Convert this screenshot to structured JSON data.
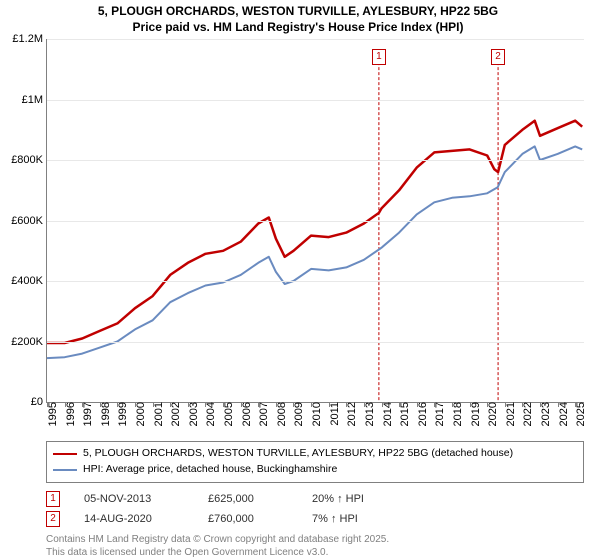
{
  "title_line1": "5, PLOUGH ORCHARDS, WESTON TURVILLE, AYLESBURY, HP22 5BG",
  "title_line2": "Price paid vs. HM Land Registry's House Price Index (HPI)",
  "chart": {
    "type": "line",
    "background_color": "#ffffff",
    "grid_color": "#e8e8e8",
    "axis_color": "#808080",
    "y": {
      "min": 0,
      "max": 1200000,
      "ticks": [
        {
          "v": 0,
          "label": "£0"
        },
        {
          "v": 200000,
          "label": "£200K"
        },
        {
          "v": 400000,
          "label": "£400K"
        },
        {
          "v": 600000,
          "label": "£600K"
        },
        {
          "v": 800000,
          "label": "£800K"
        },
        {
          "v": 1000000,
          "label": "£1M"
        },
        {
          "v": 1200000,
          "label": "£1.2M"
        }
      ],
      "label_fontsize": 11
    },
    "x": {
      "min": 1995,
      "max": 2025.5,
      "ticks": [
        1995,
        1996,
        1997,
        1998,
        1999,
        2000,
        2001,
        2002,
        2003,
        2004,
        2005,
        2006,
        2007,
        2008,
        2009,
        2010,
        2011,
        2012,
        2013,
        2014,
        2015,
        2016,
        2017,
        2018,
        2019,
        2020,
        2021,
        2022,
        2023,
        2024,
        2025
      ],
      "label_fontsize": 11
    },
    "series": [
      {
        "name": "property",
        "label": "5, PLOUGH ORCHARDS, WESTON TURVILLE, AYLESBURY, HP22 5BG (detached house)",
        "color": "#c00000",
        "line_width": 2.5,
        "points": [
          [
            1995,
            195000
          ],
          [
            1996,
            195000
          ],
          [
            1997,
            210000
          ],
          [
            1998,
            235000
          ],
          [
            1999,
            260000
          ],
          [
            2000,
            310000
          ],
          [
            2001,
            350000
          ],
          [
            2002,
            420000
          ],
          [
            2003,
            460000
          ],
          [
            2004,
            490000
          ],
          [
            2005,
            500000
          ],
          [
            2006,
            530000
          ],
          [
            2007,
            590000
          ],
          [
            2007.6,
            610000
          ],
          [
            2008,
            540000
          ],
          [
            2008.5,
            480000
          ],
          [
            2009,
            500000
          ],
          [
            2010,
            550000
          ],
          [
            2011,
            545000
          ],
          [
            2012,
            560000
          ],
          [
            2013,
            590000
          ],
          [
            2013.85,
            625000
          ],
          [
            2014,
            640000
          ],
          [
            2015,
            700000
          ],
          [
            2016,
            775000
          ],
          [
            2017,
            825000
          ],
          [
            2018,
            830000
          ],
          [
            2019,
            835000
          ],
          [
            2020,
            815000
          ],
          [
            2020.4,
            770000
          ],
          [
            2020.62,
            760000
          ],
          [
            2021,
            850000
          ],
          [
            2022,
            900000
          ],
          [
            2022.7,
            930000
          ],
          [
            2023,
            880000
          ],
          [
            2024,
            905000
          ],
          [
            2025,
            930000
          ],
          [
            2025.4,
            910000
          ]
        ]
      },
      {
        "name": "hpi",
        "label": "HPI: Average price, detached house, Buckinghamshire",
        "color": "#6a8bc0",
        "line_width": 2,
        "points": [
          [
            1995,
            145000
          ],
          [
            1996,
            148000
          ],
          [
            1997,
            160000
          ],
          [
            1998,
            180000
          ],
          [
            1999,
            200000
          ],
          [
            2000,
            240000
          ],
          [
            2001,
            270000
          ],
          [
            2002,
            330000
          ],
          [
            2003,
            360000
          ],
          [
            2004,
            385000
          ],
          [
            2005,
            395000
          ],
          [
            2006,
            420000
          ],
          [
            2007,
            460000
          ],
          [
            2007.6,
            480000
          ],
          [
            2008,
            430000
          ],
          [
            2008.5,
            390000
          ],
          [
            2009,
            400000
          ],
          [
            2010,
            440000
          ],
          [
            2011,
            435000
          ],
          [
            2012,
            445000
          ],
          [
            2013,
            470000
          ],
          [
            2014,
            510000
          ],
          [
            2015,
            560000
          ],
          [
            2016,
            620000
          ],
          [
            2017,
            660000
          ],
          [
            2018,
            675000
          ],
          [
            2019,
            680000
          ],
          [
            2020,
            690000
          ],
          [
            2020.6,
            710000
          ],
          [
            2021,
            760000
          ],
          [
            2022,
            820000
          ],
          [
            2022.7,
            845000
          ],
          [
            2023,
            800000
          ],
          [
            2024,
            820000
          ],
          [
            2025,
            845000
          ],
          [
            2025.4,
            835000
          ]
        ]
      }
    ],
    "markers": [
      {
        "n": "1",
        "x": 2013.85,
        "y_top": 60000
      },
      {
        "n": "2",
        "x": 2020.62,
        "y_top": 60000
      }
    ]
  },
  "legend": {
    "border_color": "#808080",
    "fontsize": 10.5
  },
  "sales": [
    {
      "n": "1",
      "date": "05-NOV-2013",
      "price": "£625,000",
      "pct": "20% ↑ HPI"
    },
    {
      "n": "2",
      "date": "14-AUG-2020",
      "price": "£760,000",
      "pct": "7% ↑ HPI"
    }
  ],
  "footnote_line1": "Contains HM Land Registry data © Crown copyright and database right 2025.",
  "footnote_line2": "This data is licensed under the Open Government Licence v3.0."
}
